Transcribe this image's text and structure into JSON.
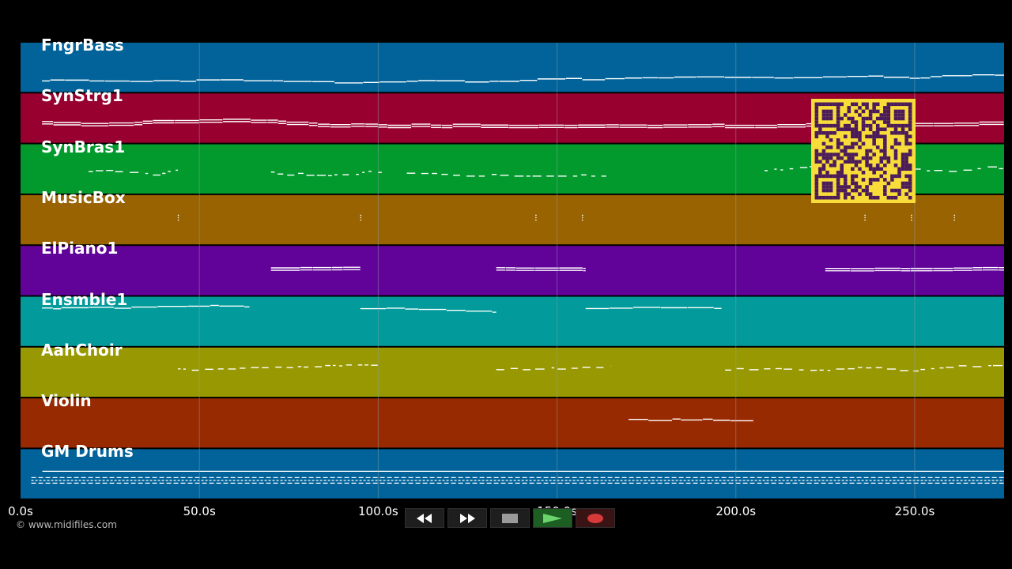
{
  "colors": {
    "background": "#000000",
    "note": "#ffffff",
    "grid": "#8fa3ad",
    "qr_fg": "#4a1a5a",
    "qr_bg": "#f7dc3a"
  },
  "tracks": [
    {
      "name": "FngrBass",
      "color": "#01639a"
    },
    {
      "name": "SynStrg1",
      "color": "#98012f"
    },
    {
      "name": "SynBras1",
      "color": "#029a2d"
    },
    {
      "name": "MusicBox",
      "color": "#996302"
    },
    {
      "name": "ElPiano1",
      "color": "#610298"
    },
    {
      "name": "Ensmble1",
      "color": "#029a9a"
    },
    {
      "name": "AahChoir",
      "color": "#989902"
    },
    {
      "name": "Violin",
      "color": "#982a02"
    },
    {
      "name": "GM Drums",
      "color": "#01639a"
    }
  ],
  "timeline": {
    "min_s": 0,
    "max_s": 275,
    "ticks": [
      {
        "value": 0,
        "label": "0.0s"
      },
      {
        "value": 50,
        "label": "50.0s"
      },
      {
        "value": 100,
        "label": "100.0s"
      },
      {
        "value": 150,
        "label": "150.0s"
      },
      {
        "value": 200,
        "label": "200.0s"
      },
      {
        "value": 250,
        "label": "250.0s"
      }
    ]
  },
  "credit": "© www.midifiles.com",
  "transport": {
    "rewind_icon": "rewind-icon",
    "fast_forward_icon": "fast-forward-icon",
    "stop_icon": "stop-icon",
    "play_icon": "play-icon",
    "record_icon": "record-icon"
  }
}
